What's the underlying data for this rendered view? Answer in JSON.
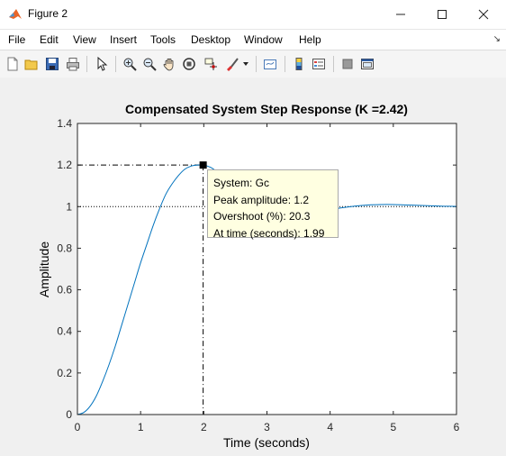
{
  "window": {
    "title": "Figure 2",
    "minimize_icon": "minimize-icon",
    "maximize_icon": "maximize-icon",
    "close_icon": "close-icon"
  },
  "menu": {
    "items": [
      "File",
      "Edit",
      "View",
      "Insert",
      "Tools",
      "Desktop",
      "Window",
      "Help"
    ]
  },
  "toolbar": {
    "icons": [
      "new-figure-icon",
      "open-file-icon",
      "save-icon",
      "print-icon",
      "edit-plot-icon",
      "zoom-in-icon",
      "zoom-out-icon",
      "pan-icon",
      "rotate-3d-icon",
      "data-cursor-icon",
      "brush-icon",
      "brush-dropdown-icon",
      "link-plot-icon",
      "insert-colorbar-icon",
      "insert-legend-icon",
      "hide-plot-tools-icon",
      "show-plot-tools-icon"
    ]
  },
  "chart_data": {
    "type": "line",
    "title": "Compensated System Step Response (K =2.42)",
    "xlabel": "Time (seconds)",
    "ylabel": "Amplitude",
    "xlim": [
      0,
      6
    ],
    "ylim": [
      0,
      1.4
    ],
    "xticks": [
      "0",
      "1",
      "2",
      "3",
      "4",
      "5",
      "6"
    ],
    "yticks": [
      "0",
      "0.2",
      "0.4",
      "0.6",
      "0.8",
      "1",
      "1.2",
      "1.4"
    ],
    "grid": false,
    "series": [
      {
        "name": "Gc",
        "color": "#0072bd",
        "x": [
          0,
          0.1,
          0.2,
          0.3,
          0.4,
          0.5,
          0.6,
          0.7,
          0.8,
          0.9,
          1.0,
          1.1,
          1.2,
          1.3,
          1.4,
          1.5,
          1.6,
          1.7,
          1.8,
          1.9,
          1.99,
          2.1,
          2.2,
          2.3,
          2.4,
          2.5,
          2.6,
          2.7,
          2.8,
          2.9,
          3.0,
          3.2,
          3.4,
          3.6,
          3.8,
          4.0,
          4.2,
          4.4,
          4.6,
          4.8,
          5.0,
          5.2,
          5.4,
          5.6,
          5.8,
          6.0
        ],
        "y": [
          0,
          0.01,
          0.04,
          0.09,
          0.16,
          0.24,
          0.33,
          0.43,
          0.53,
          0.63,
          0.73,
          0.82,
          0.91,
          0.99,
          1.06,
          1.11,
          1.15,
          1.18,
          1.195,
          1.2,
          1.2,
          1.19,
          1.17,
          1.145,
          1.11,
          1.08,
          1.05,
          1.02,
          0.995,
          0.975,
          0.96,
          0.945,
          0.945,
          0.955,
          0.97,
          0.985,
          0.995,
          1.003,
          1.008,
          1.01,
          1.01,
          1.008,
          1.006,
          1.004,
          1.002,
          1.001
        ]
      }
    ],
    "steady_state": 1,
    "peak": {
      "x": 1.99,
      "y": 1.2
    },
    "datatip": {
      "system": "System: Gc",
      "peak": "Peak amplitude: 1.2",
      "overshoot": "Overshoot (%): 20.3",
      "time": "At time (seconds): 1.99"
    }
  }
}
